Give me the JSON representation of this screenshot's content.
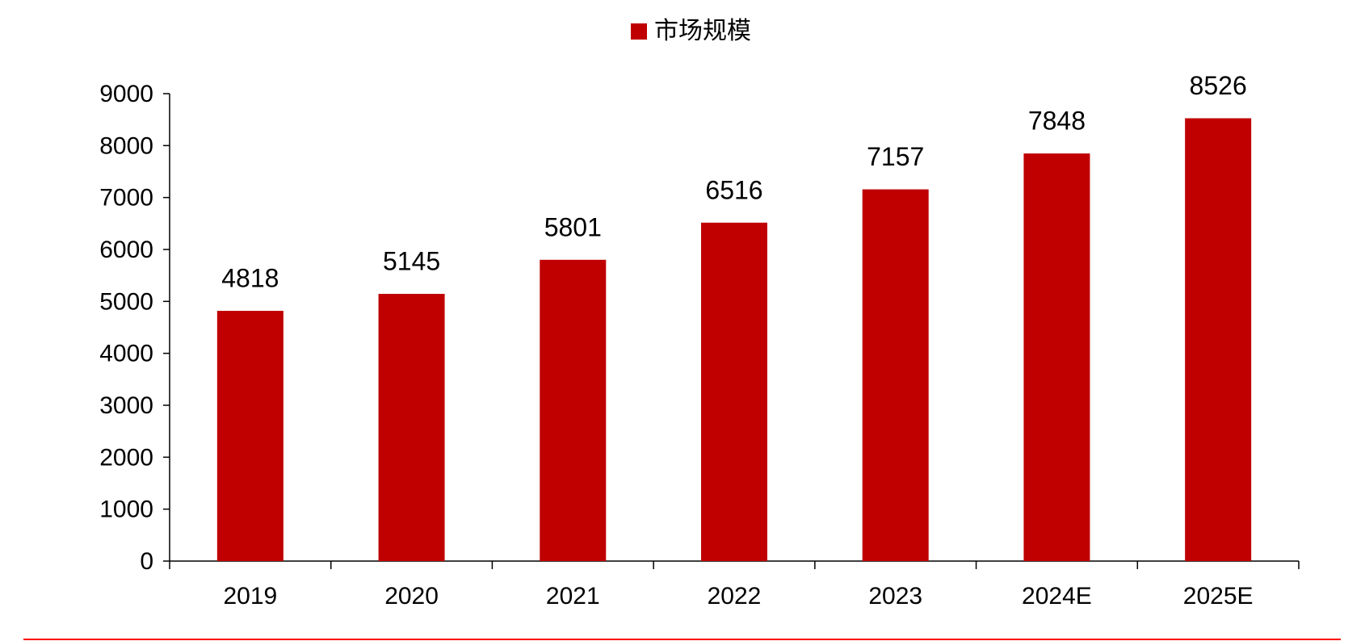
{
  "chart_data": {
    "type": "bar",
    "categories": [
      "2019",
      "2020",
      "2021",
      "2022",
      "2023",
      "2024E",
      "2025E"
    ],
    "series": [
      {
        "name": "市场规模",
        "color": "#c00000",
        "values": [
          4818,
          5145,
          5801,
          6516,
          7157,
          7848,
          8526
        ]
      }
    ],
    "ylim": [
      0,
      9000
    ],
    "yticks": [
      0,
      1000,
      2000,
      3000,
      4000,
      5000,
      6000,
      7000,
      8000,
      9000
    ],
    "legend": "top"
  }
}
